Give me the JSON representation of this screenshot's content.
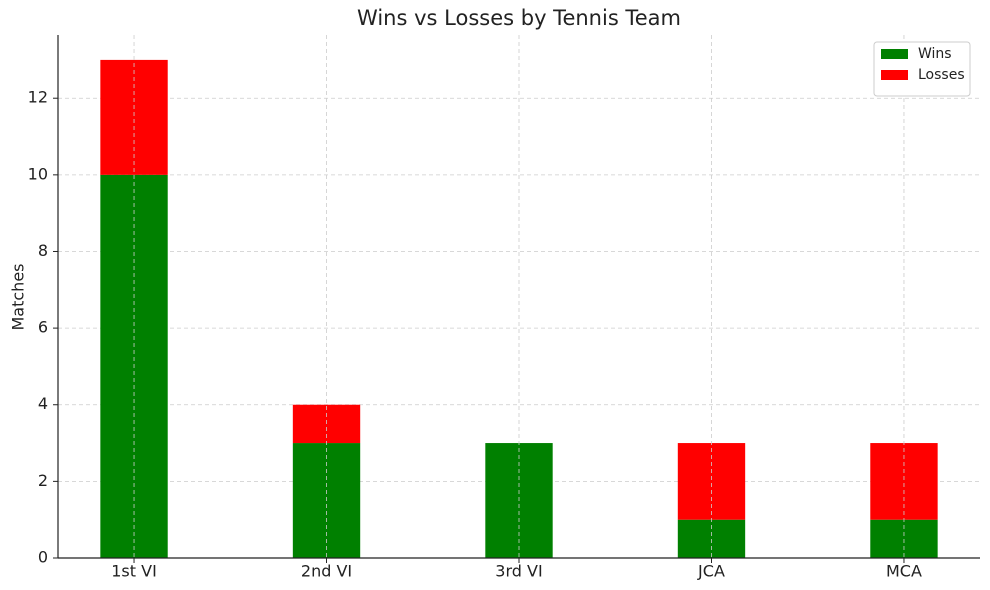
{
  "chart_data": {
    "type": "stacked_bar",
    "title": "Wins vs Losses by Tennis Team",
    "y_label": "Matches",
    "categories": [
      "1st VI",
      "2nd VI",
      "3rd VI",
      "JCA",
      "MCA"
    ],
    "series": [
      {
        "name": "Wins",
        "color": "#008000",
        "values": [
          10,
          3,
          3,
          1,
          1
        ]
      },
      {
        "name": "Losses",
        "color": "#ff0000",
        "values": [
          3,
          1,
          0,
          2,
          2
        ]
      }
    ],
    "ylim": [
      0,
      13.65
    ],
    "yticks": [
      0,
      2,
      4,
      6,
      8,
      10,
      12
    ],
    "grid": true,
    "legend": "upper right"
  }
}
